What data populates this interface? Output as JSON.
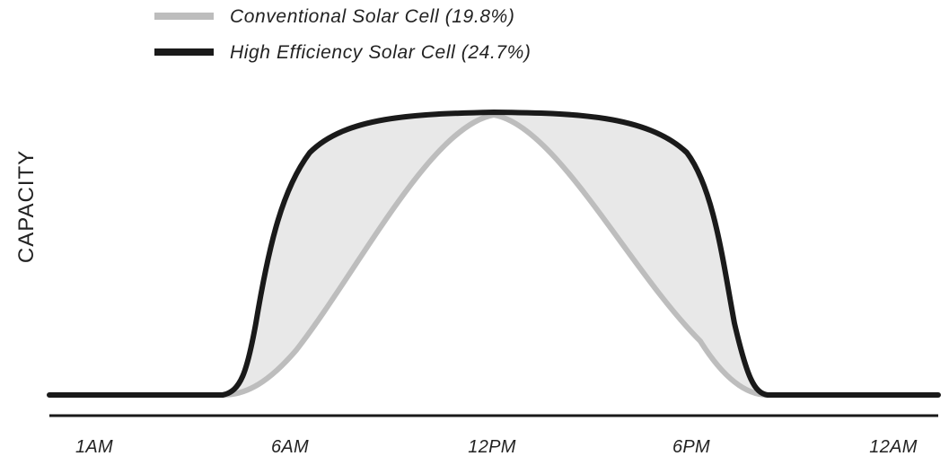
{
  "chart_data": {
    "type": "area",
    "title": "",
    "xlabel": "",
    "ylabel": "CAPACITY",
    "x_ticks": [
      "1AM",
      "6AM",
      "12PM",
      "6PM",
      "12AM"
    ],
    "legend_position": "top-left",
    "grid": false,
    "y_scale": "relative (no numeric ticks)",
    "series": [
      {
        "name": "Conventional Solar Cell (19.8%)",
        "color": "#bdbdbd",
        "shape": "bell curve: baseline until ~5AM, rising to peak at 12PM, returning to baseline by ~8PM"
      },
      {
        "name": "High Efficiency Solar Cell (24.7%)",
        "color": "#1a1a1a",
        "shape": "plateau curve: steep rise after ~5AM, broad flat top from ~8AM to ~4PM, steep fall to baseline by ~8PM"
      }
    ],
    "fill_between_color": "#e8e8e8"
  }
}
